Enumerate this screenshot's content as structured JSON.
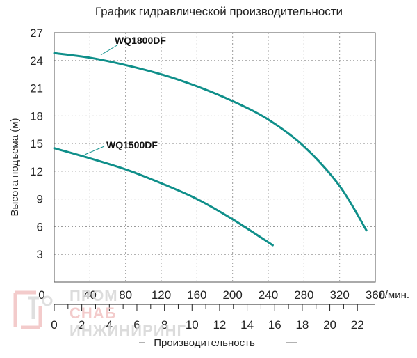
{
  "chart_data": {
    "type": "line",
    "title": "График гидравлической производительности",
    "xlabel": "Производительность",
    "ylabel": "Высота подъема (м)",
    "x_unit": "л/мин.",
    "xlim": [
      0,
      360
    ],
    "ylim": [
      0,
      27
    ],
    "x_ticks": [
      "0",
      "40",
      "80",
      "120",
      "160",
      "200",
      "240",
      "280",
      "320",
      "360"
    ],
    "y_ticks": [
      "3",
      "6",
      "9",
      "12",
      "15",
      "18",
      "21",
      "24",
      "27"
    ],
    "secondary_x_ticks": [
      "0",
      "2",
      "4",
      "6",
      "8",
      "10",
      "12",
      "14",
      "16",
      "18",
      "20",
      "22"
    ],
    "secondary_xlim": [
      0,
      22
    ],
    "grid": true,
    "series": [
      {
        "name": "WQ1800DF",
        "x": [
          0,
          40,
          80,
          120,
          160,
          200,
          240,
          280,
          320,
          350
        ],
        "y": [
          24.8,
          24.3,
          23.5,
          22.5,
          21.2,
          19.6,
          17.6,
          14.7,
          10.4,
          5.6
        ]
      },
      {
        "name": "WQ1500DF",
        "x": [
          0,
          40,
          80,
          120,
          160,
          200,
          245
        ],
        "y": [
          14.5,
          13.4,
          12.2,
          10.7,
          9.0,
          6.8,
          4.0
        ]
      }
    ]
  },
  "colors": {
    "curve": "#0f8f8a",
    "grid": "#9a9a9a",
    "watermark": "#d9d9d9"
  },
  "watermark": {
    "line1": "ПРОМ",
    "line2": "СНАБ",
    "line3": "ИНЖИНИРИНГ"
  }
}
